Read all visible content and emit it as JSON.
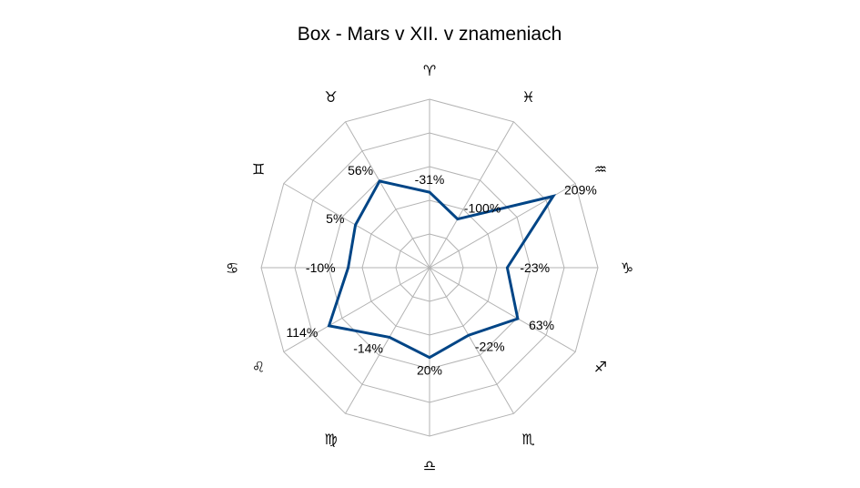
{
  "chart_data": {
    "type": "radar",
    "title": "Box - Mars v XII. v znameniach",
    "categories": [
      "♈",
      "♓",
      "♒",
      "♑",
      "♐",
      "♏",
      "♎",
      "♍",
      "♌",
      "♋",
      "♊",
      "♉"
    ],
    "series": [
      {
        "values": [
          -31,
          -100,
          209,
          -23,
          63,
          -22,
          20,
          -14,
          114,
          -10,
          5,
          56
        ],
        "data_labels": [
          "-31%",
          "-100%",
          "209%",
          "-23%",
          "63%",
          "-22%",
          "20%",
          "-14%",
          "114%",
          "-10%",
          "5%",
          "56%"
        ],
        "color": "#004586"
      }
    ],
    "radial_axis": {
      "min": -300,
      "max": 300,
      "gridlines": true,
      "tick_labels_visible": false
    },
    "legend": "none"
  },
  "colors": {
    "grid": "#b3b3b3",
    "series": "#004586",
    "text": "#000000"
  }
}
